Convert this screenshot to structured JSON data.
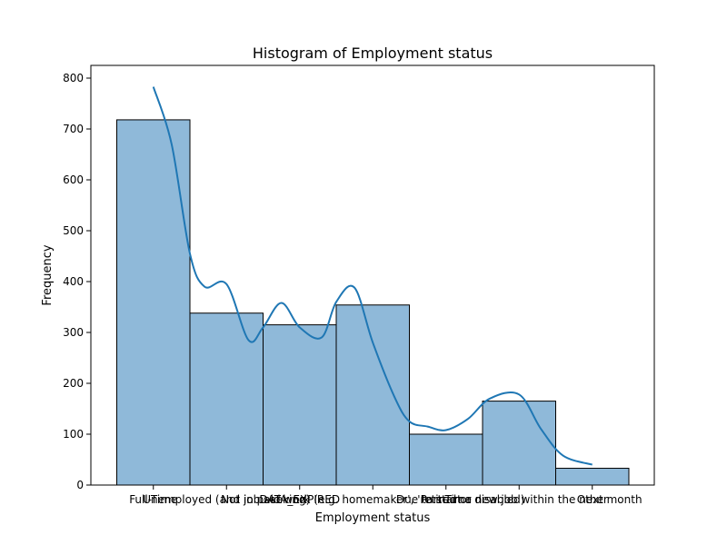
{
  "chart_data": {
    "type": "bar",
    "title": "Histogram of Employment status",
    "xlabel": "Employment status",
    "ylabel": "Frequency",
    "categories": [
      "Full-Time",
      "Unemployed (and job seeking)",
      "DATA_EXPIRED",
      "Not in paid work (e.g. homemaker', 'retired or disabled)",
      "Part-Time",
      "Due to start a new job within the next month",
      "Other"
    ],
    "x_tick_labels_as_rendered": [
      "Full-Time",
      "Unemployed (and job seeking)",
      "DATA_EXPIRED",
      "Not in paid work (e.g. homemaker', 'retired or disabled)",
      "Part-Time",
      "Due to start a new job within the next month",
      "Other"
    ],
    "values": [
      718,
      338,
      315,
      354,
      100,
      165,
      33
    ],
    "ylim": [
      0,
      825
    ],
    "yticks": [
      0,
      100,
      200,
      300,
      400,
      500,
      600,
      700,
      800
    ],
    "kde": {
      "x": [
        0,
        0.25,
        0.5,
        0.7,
        1.0,
        1.3,
        1.5,
        1.75,
        2.0,
        2.3,
        2.5,
        2.75,
        3.0,
        3.3,
        3.5,
        3.75,
        4.0,
        4.3,
        4.6,
        5.0,
        5.3,
        5.6,
        6.0
      ],
      "y": [
        783,
        670,
        455,
        390,
        395,
        285,
        310,
        358,
        310,
        290,
        360,
        388,
        280,
        172,
        125,
        115,
        108,
        130,
        170,
        178,
        110,
        58,
        40
      ]
    },
    "colors": {
      "bar_fill": "#8fb9d9",
      "bar_edge": "#000000",
      "kde_line": "#1f77b4"
    },
    "grid": false
  }
}
